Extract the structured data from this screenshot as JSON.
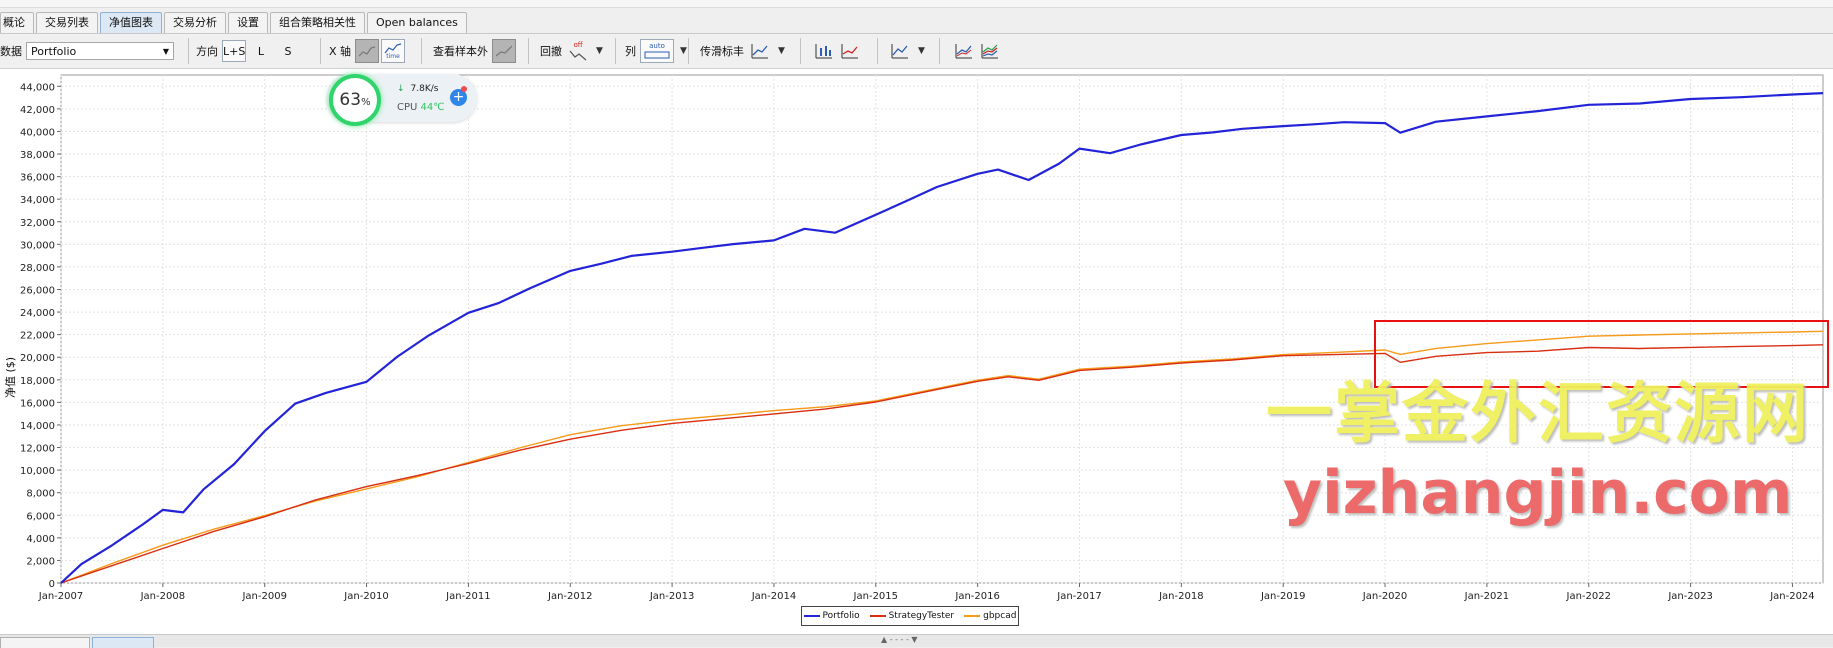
{
  "tabs": [
    "概论",
    "交易列表",
    "净值图表",
    "交易分析",
    "设置",
    "组合策略相关性",
    "Open balances"
  ],
  "active_tab": 2,
  "toolbar": {
    "data_label": "数据",
    "data_value": "Portfolio",
    "direction_label": "方向",
    "direction_options": [
      "L+S",
      "L",
      "S"
    ],
    "xaxis_label": "X 轴",
    "xaxis_time_label": "time",
    "oos_label": "查看样本外",
    "drawdown_label": "回撤",
    "drawdown_state": "off",
    "col_label": "列",
    "col_value": "auto",
    "stdev_label": "传滑标丰"
  },
  "chart_data": {
    "type": "line",
    "ylabel": "净值 ($)",
    "ylim": [
      0,
      45000
    ],
    "yticks": [
      "0",
      "2,000",
      "4,000",
      "6,000",
      "8,000",
      "10,000",
      "12,000",
      "14,000",
      "16,000",
      "18,000",
      "20,000",
      "22,000",
      "24,000",
      "26,000",
      "28,000",
      "30,000",
      "32,000",
      "34,000",
      "36,000",
      "38,000",
      "40,000",
      "42,000",
      "44,000"
    ],
    "xticks": [
      "Jan-2007",
      "Jan-2008",
      "Jan-2009",
      "Jan-2010",
      "Jan-2011",
      "Jan-2012",
      "Jan-2013",
      "Jan-2014",
      "Jan-2015",
      "Jan-2016",
      "Jan-2017",
      "Jan-2018",
      "Jan-2019",
      "Jan-2020",
      "Jan-2021",
      "Jan-2022",
      "Jan-2023",
      "Jan-2024"
    ],
    "xlim": [
      2007.0,
      2024.3
    ],
    "grid": true,
    "legend_position": "bottom-center",
    "series": [
      {
        "name": "Portfolio",
        "color": "#2323d8",
        "x": [
          2007.0,
          2007.2,
          2007.5,
          2007.8,
          2008.0,
          2008.2,
          2008.4,
          2008.7,
          2009.0,
          2009.3,
          2009.6,
          2010.0,
          2010.3,
          2010.6,
          2011.0,
          2011.3,
          2011.6,
          2012.0,
          2012.3,
          2012.6,
          2013.0,
          2013.3,
          2013.6,
          2014.0,
          2014.3,
          2014.6,
          2015.0,
          2015.3,
          2015.6,
          2016.0,
          2016.2,
          2016.5,
          2016.8,
          2017.0,
          2017.3,
          2017.6,
          2018.0,
          2018.3,
          2018.6,
          2019.0,
          2019.3,
          2019.6,
          2020.0,
          2020.15,
          2020.5,
          2021.0,
          2021.5,
          2022.0,
          2022.5,
          2023.0,
          2023.5,
          2024.0,
          2024.3
        ],
        "y": [
          0,
          1600,
          3200,
          5000,
          6300,
          6100,
          8200,
          10500,
          13500,
          16000,
          17000,
          18000,
          20200,
          22000,
          24000,
          24800,
          26000,
          27500,
          28100,
          28800,
          29200,
          29600,
          30000,
          30400,
          31500,
          31200,
          32800,
          34000,
          35200,
          36300,
          36600,
          35600,
          37000,
          38300,
          37900,
          38700,
          39600,
          39900,
          40300,
          40600,
          40800,
          41000,
          40900,
          40000,
          40900,
          41300,
          41700,
          42200,
          42300,
          42700,
          42900,
          43200,
          43400
        ]
      },
      {
        "name": "StrategyTester",
        "color": "#d82e12",
        "x": [
          2007.0,
          2007.5,
          2008.0,
          2008.5,
          2009.0,
          2009.5,
          2010.0,
          2010.5,
          2011.0,
          2011.5,
          2012.0,
          2012.5,
          2013.0,
          2013.5,
          2014.0,
          2014.5,
          2015.0,
          2015.5,
          2016.0,
          2016.3,
          2016.6,
          2017.0,
          2017.5,
          2018.0,
          2018.5,
          2019.0,
          2019.5,
          2020.0,
          2020.15,
          2020.5,
          2021.0,
          2021.5,
          2022.0,
          2022.5,
          2023.0,
          2023.5,
          2024.0,
          2024.3
        ],
        "y": [
          0,
          1500,
          3000,
          4500,
          5800,
          7300,
          8500,
          9500,
          10600,
          11800,
          12800,
          13600,
          14200,
          14600,
          15000,
          15400,
          16000,
          16900,
          17800,
          18200,
          17900,
          18800,
          19100,
          19500,
          19800,
          20200,
          20300,
          20400,
          19600,
          20100,
          20400,
          20500,
          20800,
          20700,
          20800,
          20900,
          21000,
          21100
        ]
      },
      {
        "name": "gbpcad",
        "color": "#f59a1a",
        "x": [
          2007.0,
          2007.5,
          2008.0,
          2008.5,
          2009.0,
          2009.5,
          2010.0,
          2010.5,
          2011.0,
          2011.5,
          2012.0,
          2012.5,
          2013.0,
          2013.5,
          2014.0,
          2014.5,
          2015.0,
          2015.5,
          2016.0,
          2016.3,
          2016.6,
          2017.0,
          2017.5,
          2018.0,
          2018.5,
          2019.0,
          2019.5,
          2020.0,
          2020.15,
          2020.5,
          2021.0,
          2021.5,
          2022.0,
          2022.5,
          2023.0,
          2023.5,
          2024.0,
          2024.3
        ],
        "y": [
          0,
          1700,
          3300,
          4700,
          5900,
          7200,
          8300,
          9400,
          10700,
          12000,
          13200,
          14000,
          14500,
          14900,
          15300,
          15600,
          16100,
          17000,
          17900,
          18300,
          18000,
          18900,
          19200,
          19600,
          19900,
          20300,
          20500,
          20700,
          20300,
          20800,
          21200,
          21500,
          21800,
          21900,
          22000,
          22100,
          22200,
          22300
        ]
      }
    ]
  },
  "overlay": {
    "cpu_percent": "63",
    "cpu_percent_unit": "%",
    "net_speed": "7.8K/s",
    "cpu_label": "CPU",
    "cpu_temp": "44℃"
  },
  "watermark": {
    "line1": "一掌金外汇资源网",
    "line2": "yizhangjin.com"
  }
}
